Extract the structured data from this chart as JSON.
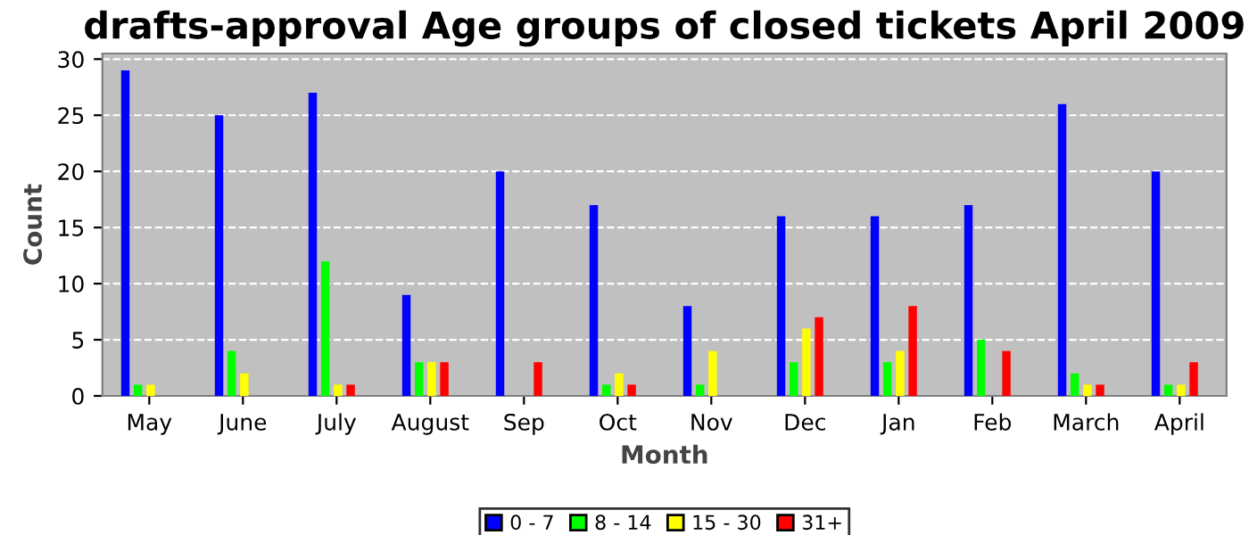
{
  "chart_data": {
    "type": "bar",
    "title": "drafts-approval Age groups of closed tickets April 2009",
    "xlabel": "Month",
    "ylabel": "Count",
    "categories": [
      "May",
      "June",
      "July",
      "August",
      "Sep",
      "Oct",
      "Nov",
      "Dec",
      "Jan",
      "Feb",
      "March",
      "April"
    ],
    "series": [
      {
        "name": "0 - 7",
        "color": "#0000ff",
        "values": [
          29,
          25,
          27,
          9,
          20,
          17,
          8,
          16,
          16,
          17,
          26,
          20
        ]
      },
      {
        "name": "8 - 14",
        "color": "#00ff00",
        "values": [
          1,
          4,
          12,
          3,
          0,
          1,
          1,
          3,
          3,
          5,
          2,
          1
        ]
      },
      {
        "name": "15 - 30",
        "color": "#ffff00",
        "values": [
          1,
          2,
          1,
          3,
          0,
          2,
          4,
          6,
          4,
          0,
          1,
          1
        ]
      },
      {
        "name": "31+",
        "color": "#ff0000",
        "values": [
          0,
          0,
          1,
          3,
          3,
          1,
          0,
          7,
          8,
          4,
          1,
          3
        ]
      }
    ],
    "ylim": [
      0,
      30.5
    ],
    "yticks": [
      0,
      5,
      10,
      15,
      20,
      25,
      30
    ],
    "grid": "y",
    "legend": "bottom"
  }
}
